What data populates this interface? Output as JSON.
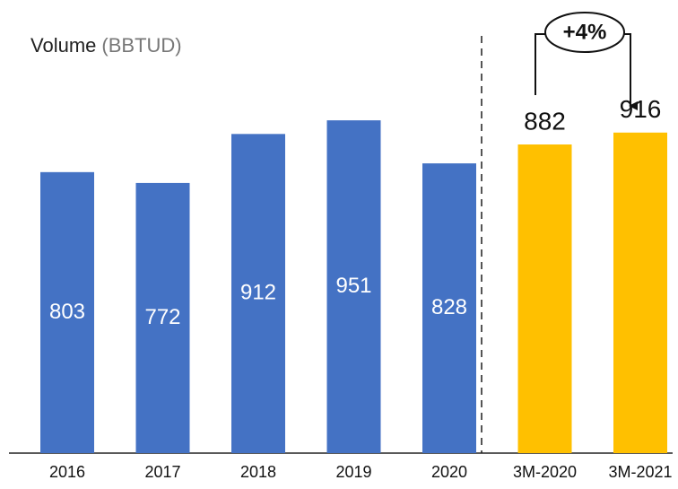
{
  "chart_data": {
    "type": "bar",
    "title": "Volume",
    "unit": "(BBTUD)",
    "categories": [
      "2016",
      "2017",
      "2018",
      "2019",
      "2020",
      "3M-2020",
      "3M-2021"
    ],
    "values": [
      803,
      772,
      912,
      951,
      828,
      882,
      916
    ],
    "colors": [
      "#4472c4",
      "#4472c4",
      "#4472c4",
      "#4472c4",
      "#4472c4",
      "#ffc000",
      "#ffc000"
    ],
    "ylim": [
      0,
      1000
    ],
    "annotation": "+4%"
  }
}
